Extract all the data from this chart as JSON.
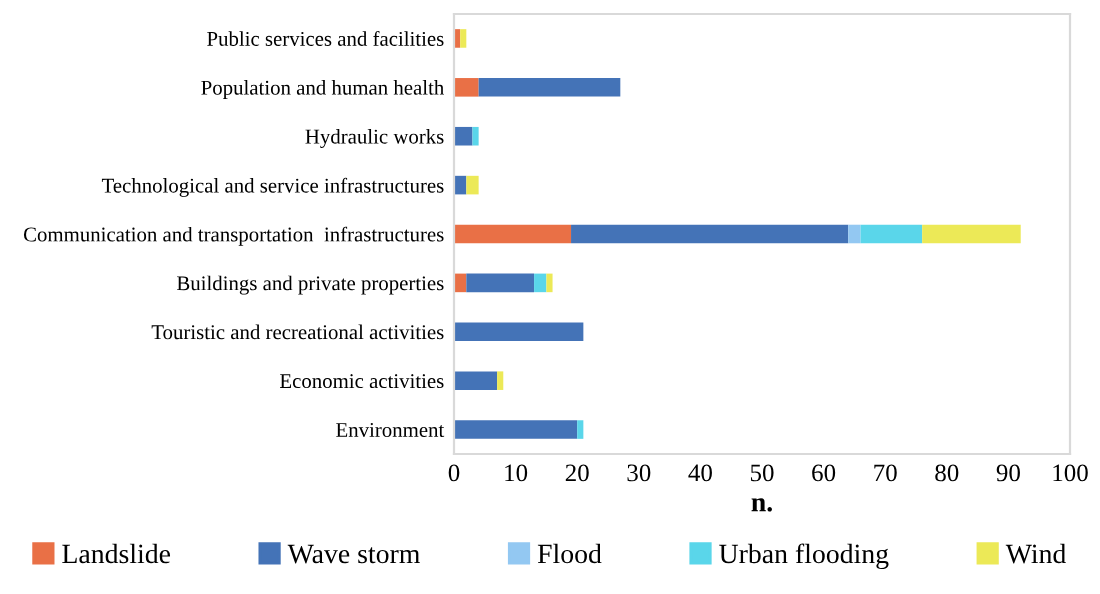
{
  "chart_data": {
    "type": "bar",
    "orientation": "horizontal",
    "stacked": true,
    "xlabel": "n.",
    "categories": [
      "Public services and facilities",
      "Population and human health",
      "Hydraulic works",
      "Technological and service infrastructures",
      "Communication and transportation  infrastructures",
      "Buildings and private properties",
      "Touristic and recreational activities",
      "Economic activities",
      "Environment"
    ],
    "series": [
      {
        "name": "Landslide",
        "color": "#e97046",
        "values": [
          1,
          4,
          0,
          0,
          19,
          2,
          0,
          0,
          0
        ]
      },
      {
        "name": "Wave storm",
        "color": "#4473b7",
        "values": [
          0,
          23,
          3,
          2,
          45,
          11,
          21,
          7,
          20
        ]
      },
      {
        "name": "Flood",
        "color": "#93c8f2",
        "values": [
          0,
          0,
          0,
          0,
          2,
          0,
          0,
          0,
          0
        ]
      },
      {
        "name": "Urban flooding",
        "color": "#5ad6ea",
        "values": [
          0,
          0,
          1,
          0,
          10,
          2,
          0,
          0,
          1
        ]
      },
      {
        "name": "Wind",
        "color": "#ece957",
        "values": [
          1,
          0,
          0,
          2,
          16,
          1,
          0,
          1,
          0
        ]
      }
    ],
    "xlim": [
      0,
      100
    ],
    "xticks": [
      0,
      10,
      20,
      30,
      40,
      50,
      60,
      70,
      80,
      90,
      100
    ],
    "grid": false,
    "legend": "bottom"
  }
}
